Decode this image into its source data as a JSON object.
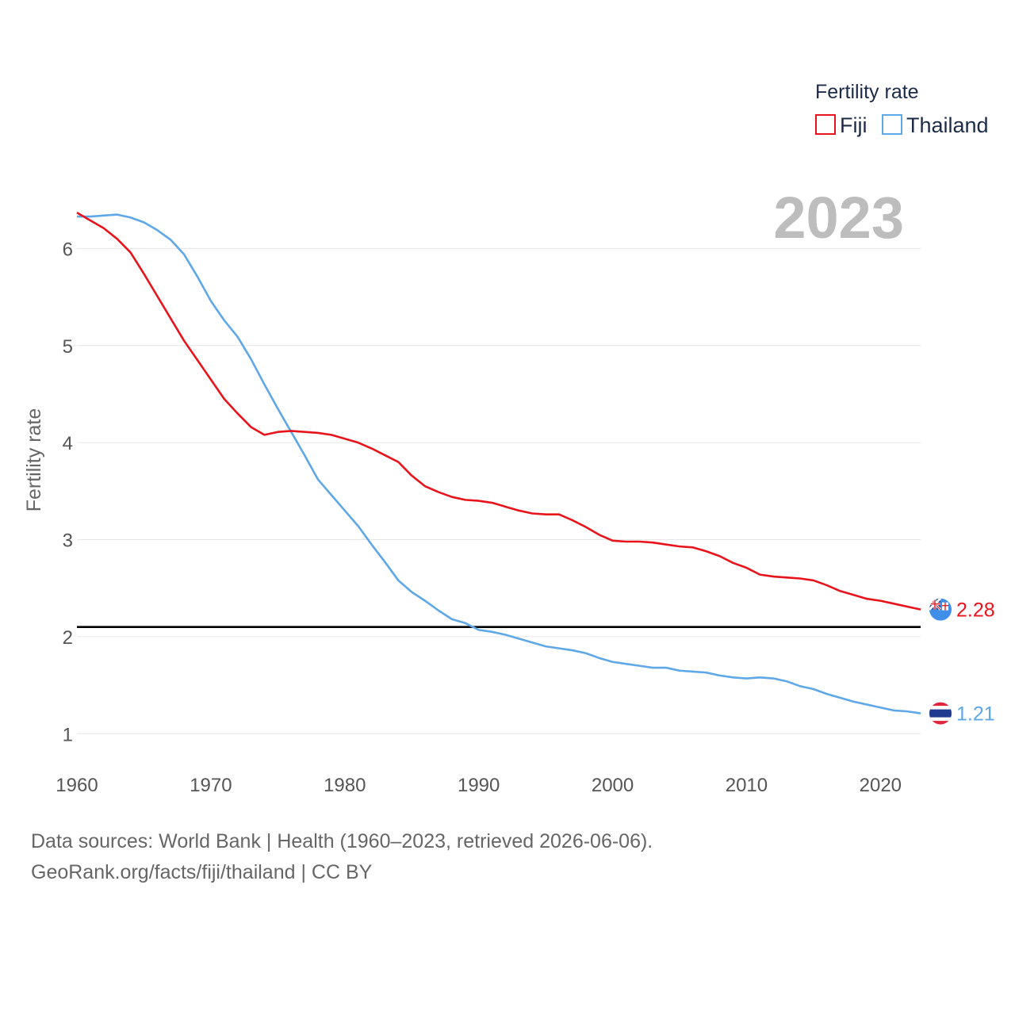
{
  "chart_data": {
    "type": "line",
    "title": "Fertility rate",
    "ylabel": "Fertility rate",
    "xlabel": "",
    "year_label": "2023",
    "xlim": [
      1960,
      2023
    ],
    "ylim": [
      0.7,
      6.6
    ],
    "x_ticks": [
      1960,
      1970,
      1980,
      1990,
      2000,
      2010,
      2020
    ],
    "y_ticks": [
      1,
      2,
      3,
      4,
      5,
      6
    ],
    "reference_line": 2.1,
    "legend_title": "Fertility rate",
    "colors": {
      "Fiji": "#e8141c",
      "Thailand": "#5fa8e8",
      "reference": "#000000"
    },
    "x": [
      1960,
      1961,
      1962,
      1963,
      1964,
      1965,
      1966,
      1967,
      1968,
      1969,
      1970,
      1971,
      1972,
      1973,
      1974,
      1975,
      1976,
      1977,
      1978,
      1979,
      1980,
      1981,
      1982,
      1983,
      1984,
      1985,
      1986,
      1987,
      1988,
      1989,
      1990,
      1991,
      1992,
      1993,
      1994,
      1995,
      1996,
      1997,
      1998,
      1999,
      2000,
      2001,
      2002,
      2003,
      2004,
      2005,
      2006,
      2007,
      2008,
      2009,
      2010,
      2011,
      2012,
      2013,
      2014,
      2015,
      2016,
      2017,
      2018,
      2019,
      2020,
      2021,
      2022,
      2023
    ],
    "series": [
      {
        "name": "Fiji",
        "end_label": "2.28",
        "values": [
          6.37,
          6.29,
          6.21,
          6.1,
          5.96,
          5.74,
          5.51,
          5.28,
          5.05,
          4.85,
          4.65,
          4.45,
          4.3,
          4.16,
          4.08,
          4.11,
          4.12,
          4.11,
          4.1,
          4.08,
          4.04,
          4.0,
          3.94,
          3.87,
          3.8,
          3.66,
          3.55,
          3.49,
          3.44,
          3.41,
          3.4,
          3.38,
          3.34,
          3.3,
          3.27,
          3.26,
          3.26,
          3.2,
          3.13,
          3.05,
          2.99,
          2.98,
          2.98,
          2.97,
          2.95,
          2.93,
          2.92,
          2.88,
          2.83,
          2.76,
          2.71,
          2.64,
          2.62,
          2.61,
          2.6,
          2.58,
          2.53,
          2.47,
          2.43,
          2.39,
          2.37,
          2.34,
          2.31,
          2.28
        ]
      },
      {
        "name": "Thailand",
        "end_label": "1.21",
        "values": [
          6.33,
          6.33,
          6.34,
          6.35,
          6.32,
          6.27,
          6.19,
          6.09,
          5.94,
          5.71,
          5.46,
          5.26,
          5.09,
          4.86,
          4.6,
          4.35,
          4.11,
          3.87,
          3.62,
          3.46,
          3.3,
          3.14,
          2.95,
          2.77,
          2.58,
          2.46,
          2.37,
          2.27,
          2.18,
          2.14,
          2.07,
          2.05,
          2.02,
          1.98,
          1.94,
          1.9,
          1.88,
          1.86,
          1.83,
          1.78,
          1.74,
          1.72,
          1.7,
          1.68,
          1.68,
          1.65,
          1.64,
          1.63,
          1.6,
          1.58,
          1.57,
          1.58,
          1.57,
          1.54,
          1.49,
          1.46,
          1.41,
          1.37,
          1.33,
          1.3,
          1.27,
          1.24,
          1.23,
          1.21
        ]
      }
    ]
  },
  "footer": {
    "source_line": "Data sources: World Bank | Health (1960–2023, retrieved 2026-06-06).",
    "license_line": "GeoRank.org/facts/fiji/thailand | CC BY"
  }
}
